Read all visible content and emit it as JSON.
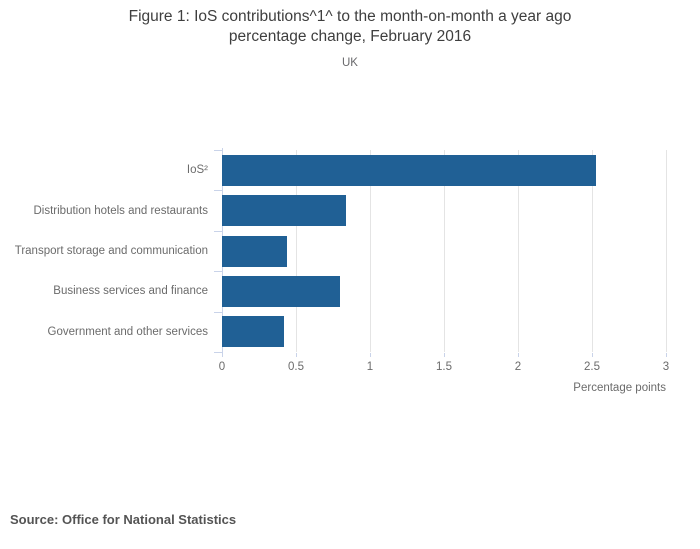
{
  "chart": {
    "title_lines": [
      "Figure 1: IoS contributions^1^ to the month-on-month a year ago",
      "percentage change, February 2016"
    ],
    "subtitle": "UK",
    "source": "Source: Office for National Statistics"
  },
  "chart_data": {
    "type": "bar",
    "orientation": "horizontal",
    "title": "Figure 1: IoS contributions^1^ to the month-on-month a year ago percentage change, February 2016",
    "subtitle": "UK",
    "categories": [
      "IoS²",
      "Distribution hotels and restaurants",
      "Transport storage and communication",
      "Business services and finance",
      "Government and other services"
    ],
    "values": [
      2.53,
      0.84,
      0.44,
      0.8,
      0.42
    ],
    "xlabel": "Percentage points",
    "xlim": [
      0,
      3
    ],
    "xticks": [
      0,
      0.5,
      1,
      1.5,
      2,
      2.5,
      3
    ],
    "grid": true,
    "legend": false,
    "bar_color": "#206095",
    "gridline_color": "#e4e4e4",
    "axis_color": "#c9d3e9",
    "source": "Source: Office for National Statistics"
  }
}
